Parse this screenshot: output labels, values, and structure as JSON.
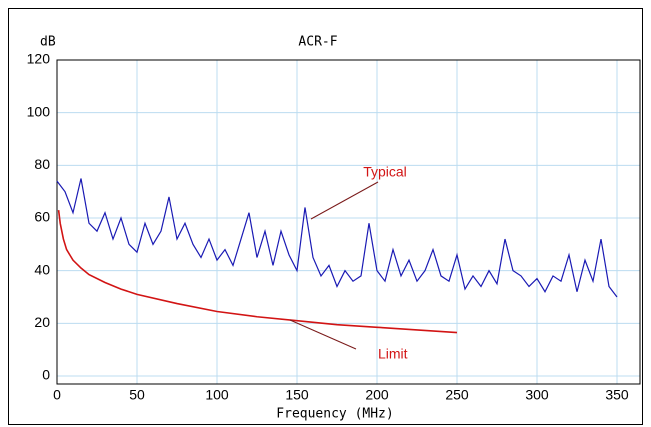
{
  "chart_data": {
    "type": "line",
    "title": "ACR-F",
    "y_label": "dB",
    "x_label": "Frequency (MHz)",
    "xlim": [
      0,
      350
    ],
    "ylim": [
      0,
      120
    ],
    "xticks": [
      0,
      50,
      100,
      150,
      200,
      250,
      300,
      350
    ],
    "yticks": [
      0,
      20,
      40,
      60,
      80,
      100,
      120
    ],
    "grid": true,
    "series": [
      {
        "name": "Typical",
        "color": "#1a1ab4",
        "x": [
          0,
          5,
          10,
          15,
          20,
          25,
          30,
          35,
          40,
          45,
          50,
          55,
          60,
          65,
          70,
          75,
          80,
          85,
          90,
          95,
          100,
          105,
          110,
          115,
          120,
          125,
          130,
          135,
          140,
          145,
          150,
          155,
          160,
          165,
          170,
          175,
          180,
          185,
          190,
          195,
          200,
          205,
          210,
          215,
          220,
          225,
          230,
          235,
          240,
          245,
          250,
          255,
          260,
          265,
          270,
          275,
          280,
          285,
          290,
          295,
          300,
          305,
          310,
          315,
          320,
          325,
          330,
          335,
          340,
          345,
          350
        ],
        "values": [
          74,
          70,
          62,
          75,
          58,
          55,
          62,
          52,
          60,
          50,
          47,
          58,
          50,
          55,
          68,
          52,
          58,
          50,
          45,
          52,
          44,
          48,
          42,
          52,
          62,
          45,
          55,
          42,
          55,
          46,
          40,
          64,
          45,
          38,
          42,
          34,
          40,
          36,
          38,
          58,
          40,
          36,
          48,
          38,
          44,
          36,
          40,
          48,
          38,
          36,
          46,
          33,
          38,
          34,
          40,
          35,
          52,
          40,
          38,
          34,
          37,
          32,
          38,
          36,
          46,
          32,
          44,
          36,
          52,
          34,
          30
        ]
      },
      {
        "name": "Limit",
        "color": "#d21414",
        "x": [
          1,
          2,
          4,
          6,
          8,
          10,
          15,
          20,
          30,
          40,
          50,
          75,
          100,
          125,
          150,
          175,
          200,
          225,
          250
        ],
        "values": [
          63,
          58,
          52,
          48,
          46,
          44,
          41,
          38.5,
          35.5,
          33,
          31,
          27.5,
          24.5,
          22.5,
          21,
          19.5,
          18.5,
          17.5,
          16.5
        ]
      }
    ],
    "annotations": [
      {
        "text": "Typical"
      },
      {
        "text": "Limit"
      }
    ]
  }
}
